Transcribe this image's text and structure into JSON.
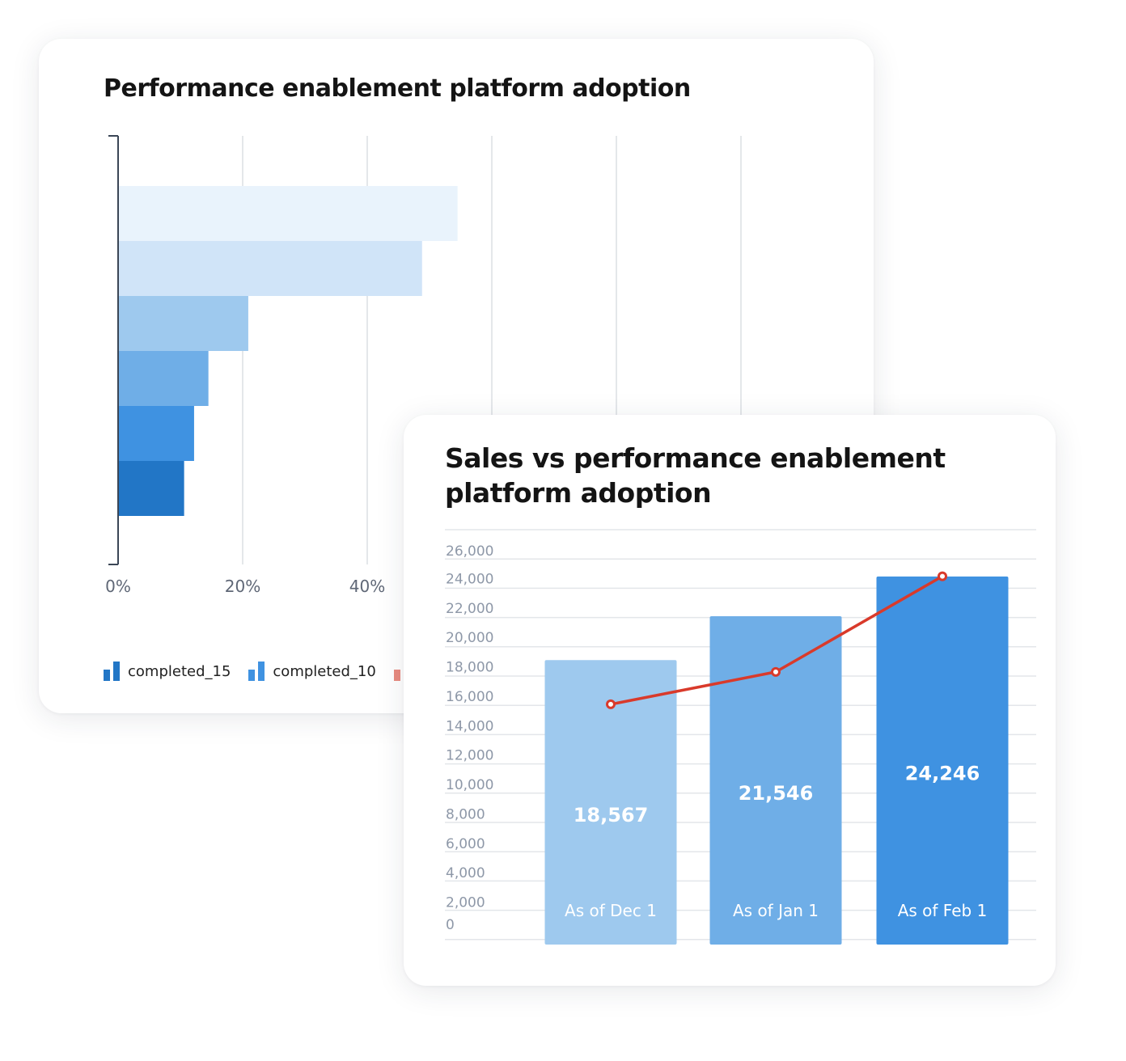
{
  "chart_data": [
    {
      "type": "bar",
      "orientation": "horizontal",
      "title": "Performance enablement platform adoption",
      "x_ticks": [
        "0%",
        "20%",
        "40%"
      ],
      "xlim": [
        0,
        100
      ],
      "grid": true,
      "values": [
        54.5,
        48.8,
        20.9,
        14.5,
        12.2,
        10.6
      ],
      "colors": [
        "#e9f3fc",
        "#d0e4f8",
        "#9ec9ee",
        "#6faee7",
        "#3f92e1",
        "#2276c6"
      ],
      "legend": [
        {
          "label": "completed_15",
          "color": "#2276c6"
        },
        {
          "label": "completed_10",
          "color": "#3f92e1"
        },
        {
          "label": "",
          "color": "#e98a80"
        }
      ],
      "legend_position": "bottom-left"
    },
    {
      "type": "bar",
      "title": "Sales vs performance enablement platform adoption",
      "categories": [
        "As of Dec 1",
        "As of Jan 1",
        "As of Feb 1"
      ],
      "values": [
        18567,
        21546,
        24246
      ],
      "value_labels": [
        "18,567",
        "21,546",
        "24,246"
      ],
      "bar_colors": [
        "#9ec9ee",
        "#6faee7",
        "#3f92e1"
      ],
      "line": {
        "values": [
          16000,
          18200,
          24700
        ],
        "color": "#d93a2b"
      },
      "y_ticks": [
        "0",
        "2,000",
        "4,000",
        "6,000",
        "8,000",
        "10,000",
        "12,000",
        "14,000",
        "16,000",
        "18,000",
        "20,000",
        "22,000",
        "24,000",
        "26,000"
      ],
      "ylim": [
        0,
        26000
      ],
      "grid": true
    }
  ]
}
